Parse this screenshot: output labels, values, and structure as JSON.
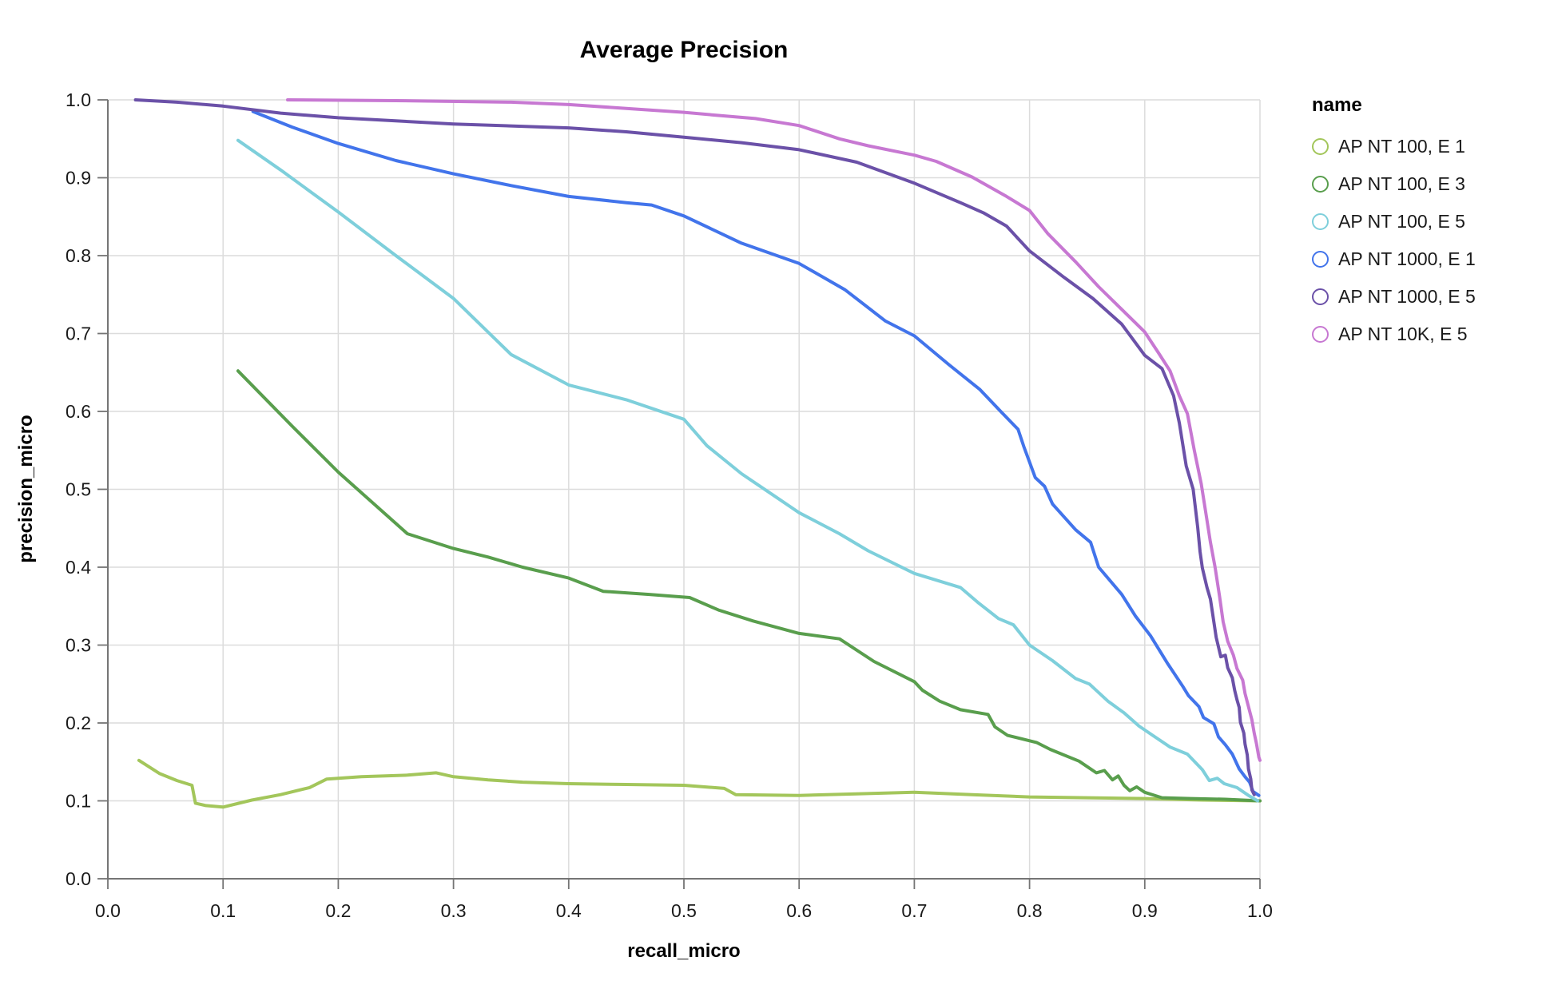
{
  "title": "Average Precision",
  "axes": {
    "x_title": "recall_micro",
    "y_title": "precision_micro"
  },
  "legend": {
    "title": "name",
    "items": [
      {
        "label": "AP NT 100, E 1",
        "color": "#a3c65b"
      },
      {
        "label": "AP NT 100, E 3",
        "color": "#599e4d"
      },
      {
        "label": "AP NT 100, E 5",
        "color": "#7ecfdb"
      },
      {
        "label": "AP NT 1000, E 1",
        "color": "#4274eb"
      },
      {
        "label": "AP NT 1000, E 5",
        "color": "#6b51a8"
      },
      {
        "label": "AP NT 10K, E 5",
        "color": "#c778d2"
      }
    ]
  },
  "colors": {
    "grid": "#dcdcdc",
    "axis": "#757575",
    "text": "#1a1a1a",
    "background": "#ffffff"
  },
  "chart_data": {
    "type": "line",
    "title": "Average Precision",
    "xlabel": "recall_micro",
    "ylabel": "precision_micro",
    "xlim": [
      0.0,
      1.0
    ],
    "ylim": [
      0.0,
      1.0
    ],
    "grid": true,
    "legend_position": "right",
    "x_ticks": [
      {
        "value": 0.0,
        "label": "0.0"
      },
      {
        "value": 0.1,
        "label": "0.1"
      },
      {
        "value": 0.2,
        "label": "0.2"
      },
      {
        "value": 0.3,
        "label": "0.3"
      },
      {
        "value": 0.4,
        "label": "0.4"
      },
      {
        "value": 0.5,
        "label": "0.5"
      },
      {
        "value": 0.6,
        "label": "0.6"
      },
      {
        "value": 0.7,
        "label": "0.7"
      },
      {
        "value": 0.8,
        "label": "0.8"
      },
      {
        "value": 0.9,
        "label": "0.9"
      },
      {
        "value": 1.0,
        "label": "1.0"
      }
    ],
    "y_ticks": [
      {
        "value": 0.0,
        "label": "0.0"
      },
      {
        "value": 0.1,
        "label": "0.1"
      },
      {
        "value": 0.2,
        "label": "0.2"
      },
      {
        "value": 0.3,
        "label": "0.3"
      },
      {
        "value": 0.4,
        "label": "0.4"
      },
      {
        "value": 0.5,
        "label": "0.5"
      },
      {
        "value": 0.6,
        "label": "0.6"
      },
      {
        "value": 0.7,
        "label": "0.7"
      },
      {
        "value": 0.8,
        "label": "0.8"
      },
      {
        "value": 0.9,
        "label": "0.9"
      },
      {
        "value": 1.0,
        "label": "1.0"
      }
    ],
    "series": [
      {
        "name": "AP NT 100, E 1",
        "color": "#a3c65b",
        "points": [
          [
            0.027,
            0.152
          ],
          [
            0.045,
            0.135
          ],
          [
            0.06,
            0.126
          ],
          [
            0.073,
            0.12
          ],
          [
            0.076,
            0.097
          ],
          [
            0.085,
            0.094
          ],
          [
            0.1,
            0.092
          ],
          [
            0.125,
            0.101
          ],
          [
            0.15,
            0.108
          ],
          [
            0.175,
            0.117
          ],
          [
            0.19,
            0.128
          ],
          [
            0.22,
            0.131
          ],
          [
            0.26,
            0.133
          ],
          [
            0.285,
            0.136
          ],
          [
            0.3,
            0.131
          ],
          [
            0.33,
            0.127
          ],
          [
            0.36,
            0.124
          ],
          [
            0.4,
            0.122
          ],
          [
            0.45,
            0.121
          ],
          [
            0.5,
            0.12
          ],
          [
            0.535,
            0.116
          ],
          [
            0.545,
            0.108
          ],
          [
            0.6,
            0.107
          ],
          [
            0.65,
            0.109
          ],
          [
            0.7,
            0.111
          ],
          [
            0.75,
            0.108
          ],
          [
            0.8,
            0.105
          ],
          [
            0.85,
            0.104
          ],
          [
            0.9,
            0.103
          ],
          [
            0.95,
            0.101
          ],
          [
            1.0,
            0.1
          ]
        ]
      },
      {
        "name": "AP NT 100, E 3",
        "color": "#599e4d",
        "points": [
          [
            0.113,
            0.652
          ],
          [
            0.16,
            0.581
          ],
          [
            0.2,
            0.522
          ],
          [
            0.26,
            0.443
          ],
          [
            0.3,
            0.424
          ],
          [
            0.33,
            0.413
          ],
          [
            0.36,
            0.4
          ],
          [
            0.4,
            0.386
          ],
          [
            0.43,
            0.369
          ],
          [
            0.47,
            0.365
          ],
          [
            0.505,
            0.361
          ],
          [
            0.53,
            0.345
          ],
          [
            0.56,
            0.331
          ],
          [
            0.6,
            0.315
          ],
          [
            0.635,
            0.308
          ],
          [
            0.665,
            0.279
          ],
          [
            0.7,
            0.253
          ],
          [
            0.707,
            0.242
          ],
          [
            0.722,
            0.228
          ],
          [
            0.74,
            0.217
          ],
          [
            0.764,
            0.211
          ],
          [
            0.77,
            0.195
          ],
          [
            0.781,
            0.184
          ],
          [
            0.806,
            0.175
          ],
          [
            0.818,
            0.166
          ],
          [
            0.843,
            0.151
          ],
          [
            0.858,
            0.136
          ],
          [
            0.865,
            0.139
          ],
          [
            0.872,
            0.127
          ],
          [
            0.877,
            0.132
          ],
          [
            0.882,
            0.12
          ],
          [
            0.887,
            0.113
          ],
          [
            0.893,
            0.118
          ],
          [
            0.9,
            0.111
          ],
          [
            0.915,
            0.104
          ],
          [
            0.94,
            0.103
          ],
          [
            0.97,
            0.102
          ],
          [
            1.0,
            0.1
          ]
        ]
      },
      {
        "name": "AP NT 100, E 5",
        "color": "#7ecfdb",
        "points": [
          [
            0.113,
            0.948
          ],
          [
            0.15,
            0.91
          ],
          [
            0.2,
            0.856
          ],
          [
            0.25,
            0.8
          ],
          [
            0.3,
            0.745
          ],
          [
            0.35,
            0.673
          ],
          [
            0.4,
            0.634
          ],
          [
            0.45,
            0.615
          ],
          [
            0.5,
            0.59
          ],
          [
            0.52,
            0.556
          ],
          [
            0.55,
            0.52
          ],
          [
            0.578,
            0.492
          ],
          [
            0.6,
            0.47
          ],
          [
            0.635,
            0.443
          ],
          [
            0.66,
            0.421
          ],
          [
            0.7,
            0.392
          ],
          [
            0.74,
            0.374
          ],
          [
            0.755,
            0.355
          ],
          [
            0.773,
            0.334
          ],
          [
            0.786,
            0.326
          ],
          [
            0.8,
            0.3
          ],
          [
            0.82,
            0.28
          ],
          [
            0.84,
            0.257
          ],
          [
            0.852,
            0.25
          ],
          [
            0.868,
            0.228
          ],
          [
            0.882,
            0.213
          ],
          [
            0.895,
            0.196
          ],
          [
            0.907,
            0.184
          ],
          [
            0.922,
            0.169
          ],
          [
            0.937,
            0.16
          ],
          [
            0.95,
            0.14
          ],
          [
            0.956,
            0.126
          ],
          [
            0.963,
            0.129
          ],
          [
            0.969,
            0.122
          ],
          [
            0.98,
            0.117
          ],
          [
            0.99,
            0.107
          ],
          [
            0.998,
            0.1
          ]
        ]
      },
      {
        "name": "AP NT 1000, E 1",
        "color": "#4274eb",
        "points": [
          [
            0.126,
            0.985
          ],
          [
            0.16,
            0.965
          ],
          [
            0.2,
            0.944
          ],
          [
            0.25,
            0.922
          ],
          [
            0.3,
            0.905
          ],
          [
            0.35,
            0.89
          ],
          [
            0.4,
            0.876
          ],
          [
            0.45,
            0.868
          ],
          [
            0.472,
            0.865
          ],
          [
            0.5,
            0.851
          ],
          [
            0.55,
            0.816
          ],
          [
            0.6,
            0.79
          ],
          [
            0.64,
            0.756
          ],
          [
            0.675,
            0.716
          ],
          [
            0.7,
            0.697
          ],
          [
            0.73,
            0.66
          ],
          [
            0.757,
            0.628
          ],
          [
            0.775,
            0.6
          ],
          [
            0.79,
            0.577
          ],
          [
            0.795,
            0.555
          ],
          [
            0.805,
            0.515
          ],
          [
            0.813,
            0.504
          ],
          [
            0.82,
            0.481
          ],
          [
            0.84,
            0.448
          ],
          [
            0.853,
            0.432
          ],
          [
            0.86,
            0.4
          ],
          [
            0.88,
            0.365
          ],
          [
            0.892,
            0.337
          ],
          [
            0.905,
            0.312
          ],
          [
            0.92,
            0.276
          ],
          [
            0.933,
            0.247
          ],
          [
            0.938,
            0.235
          ],
          [
            0.947,
            0.221
          ],
          [
            0.951,
            0.207
          ],
          [
            0.96,
            0.199
          ],
          [
            0.964,
            0.182
          ],
          [
            0.97,
            0.172
          ],
          [
            0.976,
            0.16
          ],
          [
            0.982,
            0.141
          ],
          [
            0.987,
            0.131
          ],
          [
            0.991,
            0.124
          ],
          [
            0.994,
            0.112
          ],
          [
            0.999,
            0.107
          ]
        ]
      },
      {
        "name": "AP NT 1000, E 5",
        "color": "#6b51a8",
        "points": [
          [
            0.024,
            1.0
          ],
          [
            0.06,
            0.997
          ],
          [
            0.1,
            0.992
          ],
          [
            0.15,
            0.983
          ],
          [
            0.2,
            0.977
          ],
          [
            0.3,
            0.969
          ],
          [
            0.4,
            0.964
          ],
          [
            0.45,
            0.959
          ],
          [
            0.5,
            0.952
          ],
          [
            0.55,
            0.945
          ],
          [
            0.6,
            0.936
          ],
          [
            0.65,
            0.92
          ],
          [
            0.7,
            0.893
          ],
          [
            0.74,
            0.868
          ],
          [
            0.76,
            0.855
          ],
          [
            0.78,
            0.838
          ],
          [
            0.8,
            0.806
          ],
          [
            0.83,
            0.772
          ],
          [
            0.855,
            0.745
          ],
          [
            0.88,
            0.712
          ],
          [
            0.9,
            0.672
          ],
          [
            0.915,
            0.655
          ],
          [
            0.925,
            0.62
          ],
          [
            0.93,
            0.585
          ],
          [
            0.936,
            0.53
          ],
          [
            0.942,
            0.5
          ],
          [
            0.946,
            0.451
          ],
          [
            0.948,
            0.42
          ],
          [
            0.95,
            0.399
          ],
          [
            0.954,
            0.374
          ],
          [
            0.957,
            0.359
          ],
          [
            0.962,
            0.31
          ],
          [
            0.966,
            0.285
          ],
          [
            0.97,
            0.287
          ],
          [
            0.972,
            0.271
          ],
          [
            0.976,
            0.258
          ],
          [
            0.978,
            0.242
          ],
          [
            0.98,
            0.23
          ],
          [
            0.982,
            0.22
          ],
          [
            0.983,
            0.201
          ],
          [
            0.986,
            0.187
          ],
          [
            0.987,
            0.173
          ],
          [
            0.989,
            0.159
          ],
          [
            0.99,
            0.141
          ],
          [
            0.992,
            0.128
          ],
          [
            0.993,
            0.114
          ],
          [
            0.995,
            0.108
          ]
        ]
      },
      {
        "name": "AP NT 10K, E 5",
        "color": "#c778d2",
        "points": [
          [
            0.156,
            1.0
          ],
          [
            0.25,
            0.999
          ],
          [
            0.35,
            0.997
          ],
          [
            0.4,
            0.994
          ],
          [
            0.45,
            0.989
          ],
          [
            0.5,
            0.984
          ],
          [
            0.53,
            0.98
          ],
          [
            0.562,
            0.976
          ],
          [
            0.6,
            0.967
          ],
          [
            0.635,
            0.95
          ],
          [
            0.66,
            0.941
          ],
          [
            0.7,
            0.929
          ],
          [
            0.719,
            0.921
          ],
          [
            0.75,
            0.901
          ],
          [
            0.78,
            0.876
          ],
          [
            0.8,
            0.858
          ],
          [
            0.816,
            0.828
          ],
          [
            0.84,
            0.792
          ],
          [
            0.86,
            0.76
          ],
          [
            0.88,
            0.731
          ],
          [
            0.9,
            0.702
          ],
          [
            0.912,
            0.675
          ],
          [
            0.922,
            0.652
          ],
          [
            0.93,
            0.62
          ],
          [
            0.937,
            0.597
          ],
          [
            0.943,
            0.55
          ],
          [
            0.949,
            0.507
          ],
          [
            0.953,
            0.47
          ],
          [
            0.957,
            0.432
          ],
          [
            0.961,
            0.4
          ],
          [
            0.965,
            0.362
          ],
          [
            0.968,
            0.33
          ],
          [
            0.972,
            0.305
          ],
          [
            0.977,
            0.287
          ],
          [
            0.98,
            0.27
          ],
          [
            0.985,
            0.255
          ],
          [
            0.987,
            0.238
          ],
          [
            0.99,
            0.221
          ],
          [
            0.993,
            0.204
          ],
          [
            0.995,
            0.187
          ],
          [
            0.997,
            0.173
          ],
          [
            0.999,
            0.156
          ],
          [
            1.0,
            0.152
          ]
        ]
      }
    ]
  }
}
